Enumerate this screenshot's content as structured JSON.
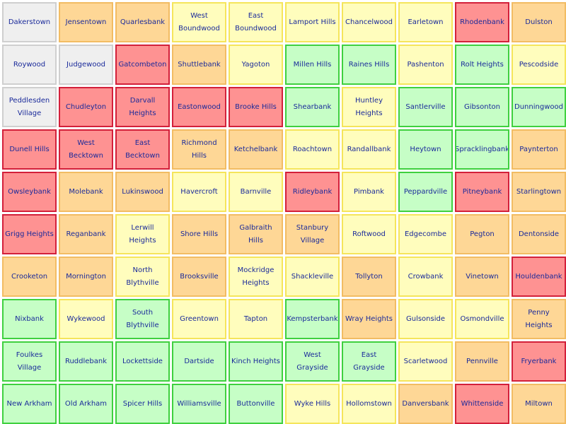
{
  "colors": {
    "gray": "#efefef",
    "orange": "#fed796",
    "yellow": "#fffdbd",
    "red": "#fe9292",
    "green": "#c6fec6",
    "text": "#1a2a9a"
  },
  "grid": {
    "rows": [
      [
        {
          "name": "Dakerstown",
          "status": "gray"
        },
        {
          "name": "Jensentown",
          "status": "orange"
        },
        {
          "name": "Quarlesbank",
          "status": "orange"
        },
        {
          "name": "West Boundwood",
          "status": "yellow"
        },
        {
          "name": "East Boundwood",
          "status": "yellow"
        },
        {
          "name": "Lamport Hills",
          "status": "yellow"
        },
        {
          "name": "Chancelwood",
          "status": "yellow"
        },
        {
          "name": "Earletown",
          "status": "yellow"
        },
        {
          "name": "Rhodenbank",
          "status": "red"
        },
        {
          "name": "Dulston",
          "status": "orange"
        }
      ],
      [
        {
          "name": "Roywood",
          "status": "gray"
        },
        {
          "name": "Judgewood",
          "status": "gray"
        },
        {
          "name": "Gatcombeton",
          "status": "red"
        },
        {
          "name": "Shuttlebank",
          "status": "orange"
        },
        {
          "name": "Yagoton",
          "status": "yellow"
        },
        {
          "name": "Millen Hills",
          "status": "green"
        },
        {
          "name": "Raines Hills",
          "status": "green"
        },
        {
          "name": "Pashenton",
          "status": "yellow"
        },
        {
          "name": "Rolt Heights",
          "status": "green"
        },
        {
          "name": "Pescodside",
          "status": "yellow"
        }
      ],
      [
        {
          "name": "Peddlesden Village",
          "status": "gray"
        },
        {
          "name": "Chudleyton",
          "status": "red"
        },
        {
          "name": "Darvall Heights",
          "status": "red"
        },
        {
          "name": "Eastonwood",
          "status": "red"
        },
        {
          "name": "Brooke Hills",
          "status": "red"
        },
        {
          "name": "Shearbank",
          "status": "green"
        },
        {
          "name": "Huntley Heights",
          "status": "yellow"
        },
        {
          "name": "Santlerville",
          "status": "green"
        },
        {
          "name": "Gibsonton",
          "status": "green"
        },
        {
          "name": "Dunningwood",
          "status": "green"
        }
      ],
      [
        {
          "name": "Dunell Hills",
          "status": "red"
        },
        {
          "name": "West Becktown",
          "status": "red"
        },
        {
          "name": "East Becktown",
          "status": "red"
        },
        {
          "name": "Richmond Hills",
          "status": "orange"
        },
        {
          "name": "Ketchelbank",
          "status": "orange"
        },
        {
          "name": "Roachtown",
          "status": "yellow"
        },
        {
          "name": "Randallbank",
          "status": "yellow"
        },
        {
          "name": "Heytown",
          "status": "green"
        },
        {
          "name": "Spracklingbank",
          "status": "green"
        },
        {
          "name": "Paynterton",
          "status": "orange"
        }
      ],
      [
        {
          "name": "Owsleybank",
          "status": "red"
        },
        {
          "name": "Molebank",
          "status": "orange"
        },
        {
          "name": "Lukinswood",
          "status": "orange"
        },
        {
          "name": "Havercroft",
          "status": "yellow"
        },
        {
          "name": "Barnville",
          "status": "yellow"
        },
        {
          "name": "Ridleybank",
          "status": "red"
        },
        {
          "name": "Pimbank",
          "status": "yellow"
        },
        {
          "name": "Peppardville",
          "status": "green"
        },
        {
          "name": "Pitneybank",
          "status": "red"
        },
        {
          "name": "Starlingtown",
          "status": "orange"
        }
      ],
      [
        {
          "name": "Grigg Heights",
          "status": "red"
        },
        {
          "name": "Reganbank",
          "status": "orange"
        },
        {
          "name": "Lerwill Heights",
          "status": "yellow"
        },
        {
          "name": "Shore Hills",
          "status": "orange"
        },
        {
          "name": "Galbraith Hills",
          "status": "orange"
        },
        {
          "name": "Stanbury Village",
          "status": "orange"
        },
        {
          "name": "Roftwood",
          "status": "yellow"
        },
        {
          "name": "Edgecombe",
          "status": "yellow"
        },
        {
          "name": "Pegton",
          "status": "orange"
        },
        {
          "name": "Dentonside",
          "status": "orange"
        }
      ],
      [
        {
          "name": "Crooketon",
          "status": "orange"
        },
        {
          "name": "Mornington",
          "status": "orange"
        },
        {
          "name": "North Blythville",
          "status": "yellow"
        },
        {
          "name": "Brooksville",
          "status": "orange"
        },
        {
          "name": "Mockridge Heights",
          "status": "yellow"
        },
        {
          "name": "Shackleville",
          "status": "yellow"
        },
        {
          "name": "Tollyton",
          "status": "orange"
        },
        {
          "name": "Crowbank",
          "status": "yellow"
        },
        {
          "name": "Vinetown",
          "status": "orange"
        },
        {
          "name": "Houldenbank",
          "status": "red"
        }
      ],
      [
        {
          "name": "Nixbank",
          "status": "green"
        },
        {
          "name": "Wykewood",
          "status": "yellow"
        },
        {
          "name": "South Blythville",
          "status": "green"
        },
        {
          "name": "Greentown",
          "status": "yellow"
        },
        {
          "name": "Tapton",
          "status": "yellow"
        },
        {
          "name": "Kempsterbank",
          "status": "green"
        },
        {
          "name": "Wray Heights",
          "status": "orange"
        },
        {
          "name": "Gulsonside",
          "status": "yellow"
        },
        {
          "name": "Osmondville",
          "status": "yellow"
        },
        {
          "name": "Penny Heights",
          "status": "orange"
        }
      ],
      [
        {
          "name": "Foulkes Village",
          "status": "green"
        },
        {
          "name": "Ruddlebank",
          "status": "green"
        },
        {
          "name": "Lockettside",
          "status": "green"
        },
        {
          "name": "Dartside",
          "status": "green"
        },
        {
          "name": "Kinch Heights",
          "status": "green"
        },
        {
          "name": "West Grayside",
          "status": "green"
        },
        {
          "name": "East Grayside",
          "status": "green"
        },
        {
          "name": "Scarletwood",
          "status": "yellow"
        },
        {
          "name": "Pennville",
          "status": "orange"
        },
        {
          "name": "Fryerbank",
          "status": "red"
        }
      ],
      [
        {
          "name": "New Arkham",
          "status": "green"
        },
        {
          "name": "Old Arkham",
          "status": "green"
        },
        {
          "name": "Spicer Hills",
          "status": "green"
        },
        {
          "name": "Williamsville",
          "status": "green"
        },
        {
          "name": "Buttonville",
          "status": "green"
        },
        {
          "name": "Wyke Hills",
          "status": "yellow"
        },
        {
          "name": "Hollomstown",
          "status": "yellow"
        },
        {
          "name": "Danversbank",
          "status": "orange"
        },
        {
          "name": "Whittenside",
          "status": "red"
        },
        {
          "name": "Miltown",
          "status": "orange"
        }
      ]
    ]
  }
}
